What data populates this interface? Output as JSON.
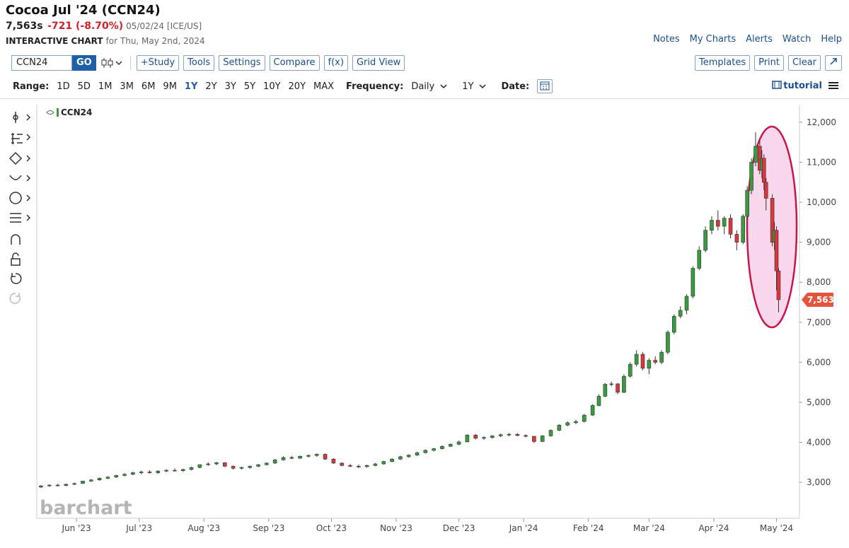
{
  "header": {
    "title": "Cocoa Jul '24 (CCN24)",
    "last": "7,563s",
    "change": "-721 (-8.70%)",
    "date_exchange": "05/02/24 [ICE/US]",
    "chart_label": "INTERACTIVE CHART",
    "chart_date": "for Thu, May 2nd, 2024"
  },
  "nav": [
    "Notes",
    "My Charts",
    "Alerts",
    "Watch",
    "Help"
  ],
  "toolbar": {
    "symbol": "CCN24",
    "go": "GO",
    "buttons": [
      "+Study",
      "Tools",
      "Settings",
      "Compare",
      "f(x)",
      "Grid View"
    ],
    "right_buttons": [
      "Templates",
      "Print",
      "Clear"
    ]
  },
  "range_bar": {
    "range_label": "Range:",
    "ranges": [
      "1D",
      "5D",
      "1M",
      "3M",
      "6M",
      "9M",
      "1Y",
      "2Y",
      "3Y",
      "5Y",
      "10Y",
      "20Y",
      "MAX"
    ],
    "active_range_index": 6,
    "frequency_label": "Frequency:",
    "frequency": "Daily",
    "period": "1Y",
    "date_label": "Date:",
    "tutorial": "tutorial"
  },
  "chart_data": {
    "type": "candlestick",
    "name": "CCN24",
    "watermark": "barchart",
    "up_color": "#3a9a3e",
    "down_color": "#d9363e",
    "grid": false,
    "x": [
      2,
      6,
      10,
      14,
      18,
      22,
      26,
      30,
      34,
      38,
      42,
      46,
      50,
      54,
      58,
      62,
      66,
      70,
      74,
      78,
      82,
      86,
      90,
      94,
      98,
      102,
      106,
      110,
      114,
      118,
      122,
      126,
      130,
      134,
      138,
      142,
      146,
      150,
      154,
      158,
      162,
      166,
      170,
      174,
      178,
      182,
      186,
      190,
      194,
      198,
      202,
      206,
      210,
      214,
      218,
      222,
      226,
      230,
      234,
      238,
      242,
      246,
      250,
      254,
      258,
      262,
      266,
      269,
      272,
      275,
      278,
      281,
      284,
      287,
      290,
      293,
      296,
      299,
      302,
      305,
      308,
      311,
      314,
      317,
      320,
      323,
      326,
      329,
      332,
      335,
      338,
      340,
      342,
      344,
      346,
      347,
      348,
      349,
      352,
      353,
      354,
      355
    ],
    "open": [
      2880,
      2910,
      2930,
      2920,
      2950,
      2970,
      3030,
      3060,
      3100,
      3130,
      3170,
      3200,
      3240,
      3260,
      3240,
      3280,
      3300,
      3290,
      3320,
      3370,
      3440,
      3460,
      3490,
      3400,
      3350,
      3370,
      3400,
      3440,
      3480,
      3560,
      3620,
      3600,
      3650,
      3670,
      3700,
      3580,
      3480,
      3420,
      3400,
      3390,
      3420,
      3460,
      3520,
      3580,
      3640,
      3680,
      3740,
      3800,
      3840,
      3900,
      3950,
      4010,
      4180,
      4100,
      4120,
      4160,
      4190,
      4200,
      4170,
      4150,
      4020,
      4160,
      4300,
      4430,
      4490,
      4520,
      4680,
      4920,
      5150,
      5450,
      5460,
      5250,
      5650,
      5950,
      6200,
      5850,
      6050,
      6000,
      6250,
      6750,
      7150,
      7300,
      7650,
      8350,
      8800,
      9300,
      9550,
      9400,
      9600,
      9200,
      9000,
      9650,
      10300,
      11000,
      11400,
      10800,
      11100,
      10500,
      10100,
      9000,
      9300,
      8284
    ],
    "high": [
      2930,
      2950,
      2960,
      2970,
      2990,
      3040,
      3080,
      3120,
      3150,
      3190,
      3230,
      3260,
      3290,
      3300,
      3300,
      3330,
      3350,
      3340,
      3390,
      3450,
      3500,
      3510,
      3500,
      3420,
      3390,
      3420,
      3460,
      3500,
      3580,
      3650,
      3660,
      3670,
      3700,
      3720,
      3720,
      3600,
      3500,
      3460,
      3440,
      3440,
      3480,
      3540,
      3600,
      3660,
      3700,
      3760,
      3820,
      3860,
      3920,
      3970,
      4040,
      4200,
      4210,
      4150,
      4180,
      4220,
      4230,
      4230,
      4200,
      4160,
      4180,
      4320,
      4450,
      4520,
      4560,
      4700,
      4950,
      5200,
      5480,
      5520,
      5480,
      5700,
      6000,
      6300,
      6250,
      6100,
      6150,
      6300,
      6800,
      7200,
      7400,
      7700,
      8400,
      8900,
      9400,
      9650,
      9800,
      9650,
      9700,
      9300,
      9700,
      10400,
      11100,
      11750,
      11550,
      11300,
      11200,
      10600,
      10200,
      9500,
      9400,
      8350
    ],
    "low": [
      2860,
      2890,
      2900,
      2900,
      2930,
      2960,
      3010,
      3040,
      3080,
      3110,
      3150,
      3180,
      3200,
      3220,
      3210,
      3250,
      3270,
      3260,
      3300,
      3350,
      3410,
      3430,
      3380,
      3320,
      3320,
      3340,
      3380,
      3420,
      3460,
      3540,
      3580,
      3590,
      3620,
      3640,
      3560,
      3460,
      3400,
      3380,
      3360,
      3370,
      3400,
      3440,
      3500,
      3560,
      3610,
      3660,
      3720,
      3770,
      3820,
      3880,
      3930,
      4000,
      4070,
      4060,
      4090,
      4130,
      4150,
      4150,
      4120,
      3980,
      4000,
      4140,
      4280,
      4400,
      4450,
      4500,
      4660,
      4900,
      5130,
      5400,
      5200,
      5230,
      5620,
      5900,
      5800,
      5700,
      5950,
      5950,
      6200,
      6700,
      7100,
      7200,
      7600,
      8300,
      8750,
      9200,
      9300,
      9200,
      9100,
      8800,
      8950,
      9600,
      10200,
      10900,
      10700,
      10600,
      10300,
      9800,
      8900,
      8800,
      7800,
      7250
    ],
    "close": [
      2910,
      2930,
      2920,
      2950,
      2970,
      3030,
      3060,
      3100,
      3130,
      3170,
      3200,
      3240,
      3260,
      3240,
      3280,
      3300,
      3290,
      3320,
      3370,
      3440,
      3460,
      3490,
      3400,
      3350,
      3370,
      3400,
      3440,
      3480,
      3560,
      3620,
      3600,
      3650,
      3670,
      3700,
      3580,
      3480,
      3420,
      3400,
      3390,
      3420,
      3460,
      3520,
      3580,
      3640,
      3680,
      3740,
      3800,
      3840,
      3900,
      3950,
      4010,
      4180,
      4100,
      4120,
      4160,
      4190,
      4200,
      4170,
      4150,
      4020,
      4160,
      4300,
      4430,
      4490,
      4520,
      4680,
      4920,
      5150,
      5450,
      5460,
      5250,
      5650,
      5950,
      6200,
      5850,
      6050,
      6000,
      6250,
      6750,
      7150,
      7300,
      7650,
      8350,
      8800,
      9300,
      9550,
      9400,
      9600,
      9200,
      9000,
      9650,
      10300,
      11000,
      11400,
      10800,
      11100,
      10500,
      10100,
      9000,
      9300,
      8284,
      7563
    ],
    "xlim": [
      0,
      365
    ],
    "xticks": [
      {
        "value": 19,
        "label": "Jun '23"
      },
      {
        "value": 49,
        "label": "Jul '23"
      },
      {
        "value": 80,
        "label": "Aug '23"
      },
      {
        "value": 111,
        "label": "Sep '23"
      },
      {
        "value": 141,
        "label": "Oct '23"
      },
      {
        "value": 172,
        "label": "Nov '23"
      },
      {
        "value": 202,
        "label": "Dec '23"
      },
      {
        "value": 233,
        "label": "Jan '24"
      },
      {
        "value": 264,
        "label": "Feb '24"
      },
      {
        "value": 293,
        "label": "Mar '24"
      },
      {
        "value": 324,
        "label": "Apr '24"
      },
      {
        "value": 354,
        "label": "May '24"
      }
    ],
    "ylim": [
      2100,
      12440
    ],
    "yticks": [
      {
        "value": 3000,
        "label": "3,000"
      },
      {
        "value": 4000,
        "label": "4,000"
      },
      {
        "value": 5000,
        "label": "5,000"
      },
      {
        "value": 6000,
        "label": "6,000"
      },
      {
        "value": 7000,
        "label": "7,000"
      },
      {
        "value": 8000,
        "label": "8,000"
      },
      {
        "value": 9000,
        "label": "9,000"
      },
      {
        "value": 10000,
        "label": "10,000"
      },
      {
        "value": 11000,
        "label": "11,000"
      },
      {
        "value": 12000,
        "label": "12,000"
      }
    ],
    "last_price": {
      "value": 7563,
      "label": "7,563"
    }
  }
}
